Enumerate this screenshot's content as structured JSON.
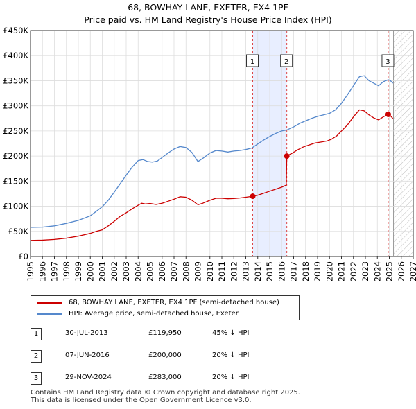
{
  "chart_data": {
    "type": "line",
    "title": "68, BOWHAY LANE, EXETER, EX4 1PF",
    "subtitle": "Price paid vs. HM Land Registry's House Price Index (HPI)",
    "xlim": [
      1995,
      2027
    ],
    "ylim": [
      0,
      450000
    ],
    "x_ticks": [
      1995,
      1996,
      1997,
      1998,
      1999,
      2000,
      2001,
      2002,
      2003,
      2004,
      2005,
      2006,
      2007,
      2008,
      2009,
      2010,
      2011,
      2012,
      2013,
      2014,
      2015,
      2016,
      2017,
      2018,
      2019,
      2020,
      2021,
      2022,
      2023,
      2024,
      2025,
      2026,
      2027
    ],
    "y_ticks": [
      {
        "value": 0,
        "label": "£0"
      },
      {
        "value": 50000,
        "label": "£50K"
      },
      {
        "value": 100000,
        "label": "£100K"
      },
      {
        "value": 150000,
        "label": "£150K"
      },
      {
        "value": 200000,
        "label": "£200K"
      },
      {
        "value": 250000,
        "label": "£250K"
      },
      {
        "value": 300000,
        "label": "£300K"
      },
      {
        "value": 350000,
        "label": "£350K"
      },
      {
        "value": 400000,
        "label": "£400K"
      },
      {
        "value": 450000,
        "label": "£450K"
      }
    ],
    "shaded_period": [
      2013.58,
      2016.43
    ],
    "future_hatch_from": 2025.35,
    "series": [
      {
        "name": "68, BOWHAY LANE, EXETER, EX4 1PF (semi-detached house)",
        "color": "#cc0000",
        "points": [
          [
            1995.0,
            32000
          ],
          [
            1996.0,
            32500
          ],
          [
            1997.0,
            34000
          ],
          [
            1998.0,
            36500
          ],
          [
            1999.0,
            40500
          ],
          [
            2000.0,
            46000
          ],
          [
            2000.5,
            50000
          ],
          [
            2001.0,
            53000
          ],
          [
            2001.5,
            61000
          ],
          [
            2002.0,
            70000
          ],
          [
            2002.5,
            80000
          ],
          [
            2003.0,
            87000
          ],
          [
            2003.5,
            95000
          ],
          [
            2004.0,
            102000
          ],
          [
            2004.3,
            106000
          ],
          [
            2004.6,
            104500
          ],
          [
            2005.0,
            105500
          ],
          [
            2005.5,
            103500
          ],
          [
            2006.0,
            106000
          ],
          [
            2006.5,
            110000
          ],
          [
            2007.0,
            114000
          ],
          [
            2007.5,
            119000
          ],
          [
            2008.0,
            118000
          ],
          [
            2008.5,
            112000
          ],
          [
            2009.0,
            103000
          ],
          [
            2009.4,
            106000
          ],
          [
            2010.0,
            112000
          ],
          [
            2010.5,
            116000
          ],
          [
            2011.0,
            116000
          ],
          [
            2011.5,
            115000
          ],
          [
            2012.0,
            115500
          ],
          [
            2012.5,
            116500
          ],
          [
            2013.0,
            118000
          ],
          [
            2013.58,
            119950
          ],
          [
            2014.0,
            122000
          ],
          [
            2014.5,
            126000
          ],
          [
            2015.0,
            130000
          ],
          [
            2015.5,
            134000
          ],
          [
            2016.0,
            138000
          ],
          [
            2016.38,
            142000
          ],
          [
            2016.43,
            200000
          ],
          [
            2016.9,
            206000
          ],
          [
            2017.3,
            212000
          ],
          [
            2017.8,
            218000
          ],
          [
            2018.3,
            222000
          ],
          [
            2018.8,
            226000
          ],
          [
            2019.3,
            228000
          ],
          [
            2019.8,
            230000
          ],
          [
            2020.2,
            234000
          ],
          [
            2020.6,
            240000
          ],
          [
            2021.0,
            250000
          ],
          [
            2021.5,
            262000
          ],
          [
            2022.0,
            278000
          ],
          [
            2022.5,
            292000
          ],
          [
            2022.9,
            290000
          ],
          [
            2023.3,
            282000
          ],
          [
            2023.7,
            276000
          ],
          [
            2024.1,
            272000
          ],
          [
            2024.5,
            278000
          ],
          [
            2024.91,
            283000
          ],
          [
            2025.1,
            280000
          ],
          [
            2025.3,
            275000
          ]
        ]
      },
      {
        "name": "HPI: Average price, semi-detached house, Exeter",
        "color": "#5588cc",
        "points": [
          [
            1995.0,
            58000
          ],
          [
            1996.0,
            58500
          ],
          [
            1997.0,
            61000
          ],
          [
            1998.0,
            66000
          ],
          [
            1999.0,
            72000
          ],
          [
            2000.0,
            81000
          ],
          [
            2000.5,
            90000
          ],
          [
            2001.0,
            99000
          ],
          [
            2001.5,
            112000
          ],
          [
            2002.0,
            128000
          ],
          [
            2002.5,
            145000
          ],
          [
            2003.0,
            162000
          ],
          [
            2003.5,
            178000
          ],
          [
            2004.0,
            191000
          ],
          [
            2004.4,
            193000
          ],
          [
            2004.8,
            189000
          ],
          [
            2005.2,
            188000
          ],
          [
            2005.6,
            190000
          ],
          [
            2006.0,
            197000
          ],
          [
            2006.5,
            206000
          ],
          [
            2007.0,
            214000
          ],
          [
            2007.5,
            219000
          ],
          [
            2008.0,
            217000
          ],
          [
            2008.5,
            207000
          ],
          [
            2009.0,
            189000
          ],
          [
            2009.5,
            197000
          ],
          [
            2010.0,
            206000
          ],
          [
            2010.5,
            211000
          ],
          [
            2011.0,
            210000
          ],
          [
            2011.5,
            208000
          ],
          [
            2012.0,
            210000
          ],
          [
            2012.5,
            211000
          ],
          [
            2013.0,
            213000
          ],
          [
            2013.5,
            216000
          ],
          [
            2014.0,
            224000
          ],
          [
            2014.5,
            232000
          ],
          [
            2015.0,
            239000
          ],
          [
            2015.5,
            245000
          ],
          [
            2016.0,
            250000
          ],
          [
            2016.43,
            252000
          ],
          [
            2017.0,
            258000
          ],
          [
            2017.5,
            265000
          ],
          [
            2018.0,
            270000
          ],
          [
            2018.5,
            275000
          ],
          [
            2019.0,
            279000
          ],
          [
            2019.5,
            282000
          ],
          [
            2020.0,
            285000
          ],
          [
            2020.5,
            292000
          ],
          [
            2021.0,
            305000
          ],
          [
            2021.5,
            322000
          ],
          [
            2022.0,
            340000
          ],
          [
            2022.5,
            358000
          ],
          [
            2022.9,
            360000
          ],
          [
            2023.3,
            350000
          ],
          [
            2023.7,
            345000
          ],
          [
            2024.1,
            340000
          ],
          [
            2024.5,
            348000
          ],
          [
            2024.91,
            352000
          ],
          [
            2025.1,
            350000
          ],
          [
            2025.3,
            345000
          ]
        ]
      }
    ],
    "sales": [
      {
        "id": "1",
        "x": 2013.58,
        "price": 119950
      },
      {
        "id": "2",
        "x": 2016.43,
        "price": 200000
      },
      {
        "id": "3",
        "x": 2024.91,
        "price": 283000
      }
    ],
    "colors": {
      "property": "#cc0000",
      "hpi": "#5588cc",
      "shade": "#e8eeff",
      "grid": "#dddddd",
      "axis": "#333333",
      "marker_line": "#dd4444"
    }
  },
  "legend": {
    "property_label": "68, BOWHAY LANE, EXETER, EX4 1PF (semi-detached house)",
    "hpi_label": "HPI: Average price, semi-detached house, Exeter"
  },
  "sales_table": [
    {
      "num": "1",
      "date": "30-JUL-2013",
      "price": "£119,950",
      "hpi": "45% ↓ HPI"
    },
    {
      "num": "2",
      "date": "07-JUN-2016",
      "price": "£200,000",
      "hpi": "20% ↓ HPI"
    },
    {
      "num": "3",
      "date": "29-NOV-2024",
      "price": "£283,000",
      "hpi": "20% ↓ HPI"
    }
  ],
  "footer": {
    "line1": "Contains HM Land Registry data © Crown copyright and database right 2025.",
    "line2": "This data is licensed under the Open Government Licence v3.0."
  }
}
